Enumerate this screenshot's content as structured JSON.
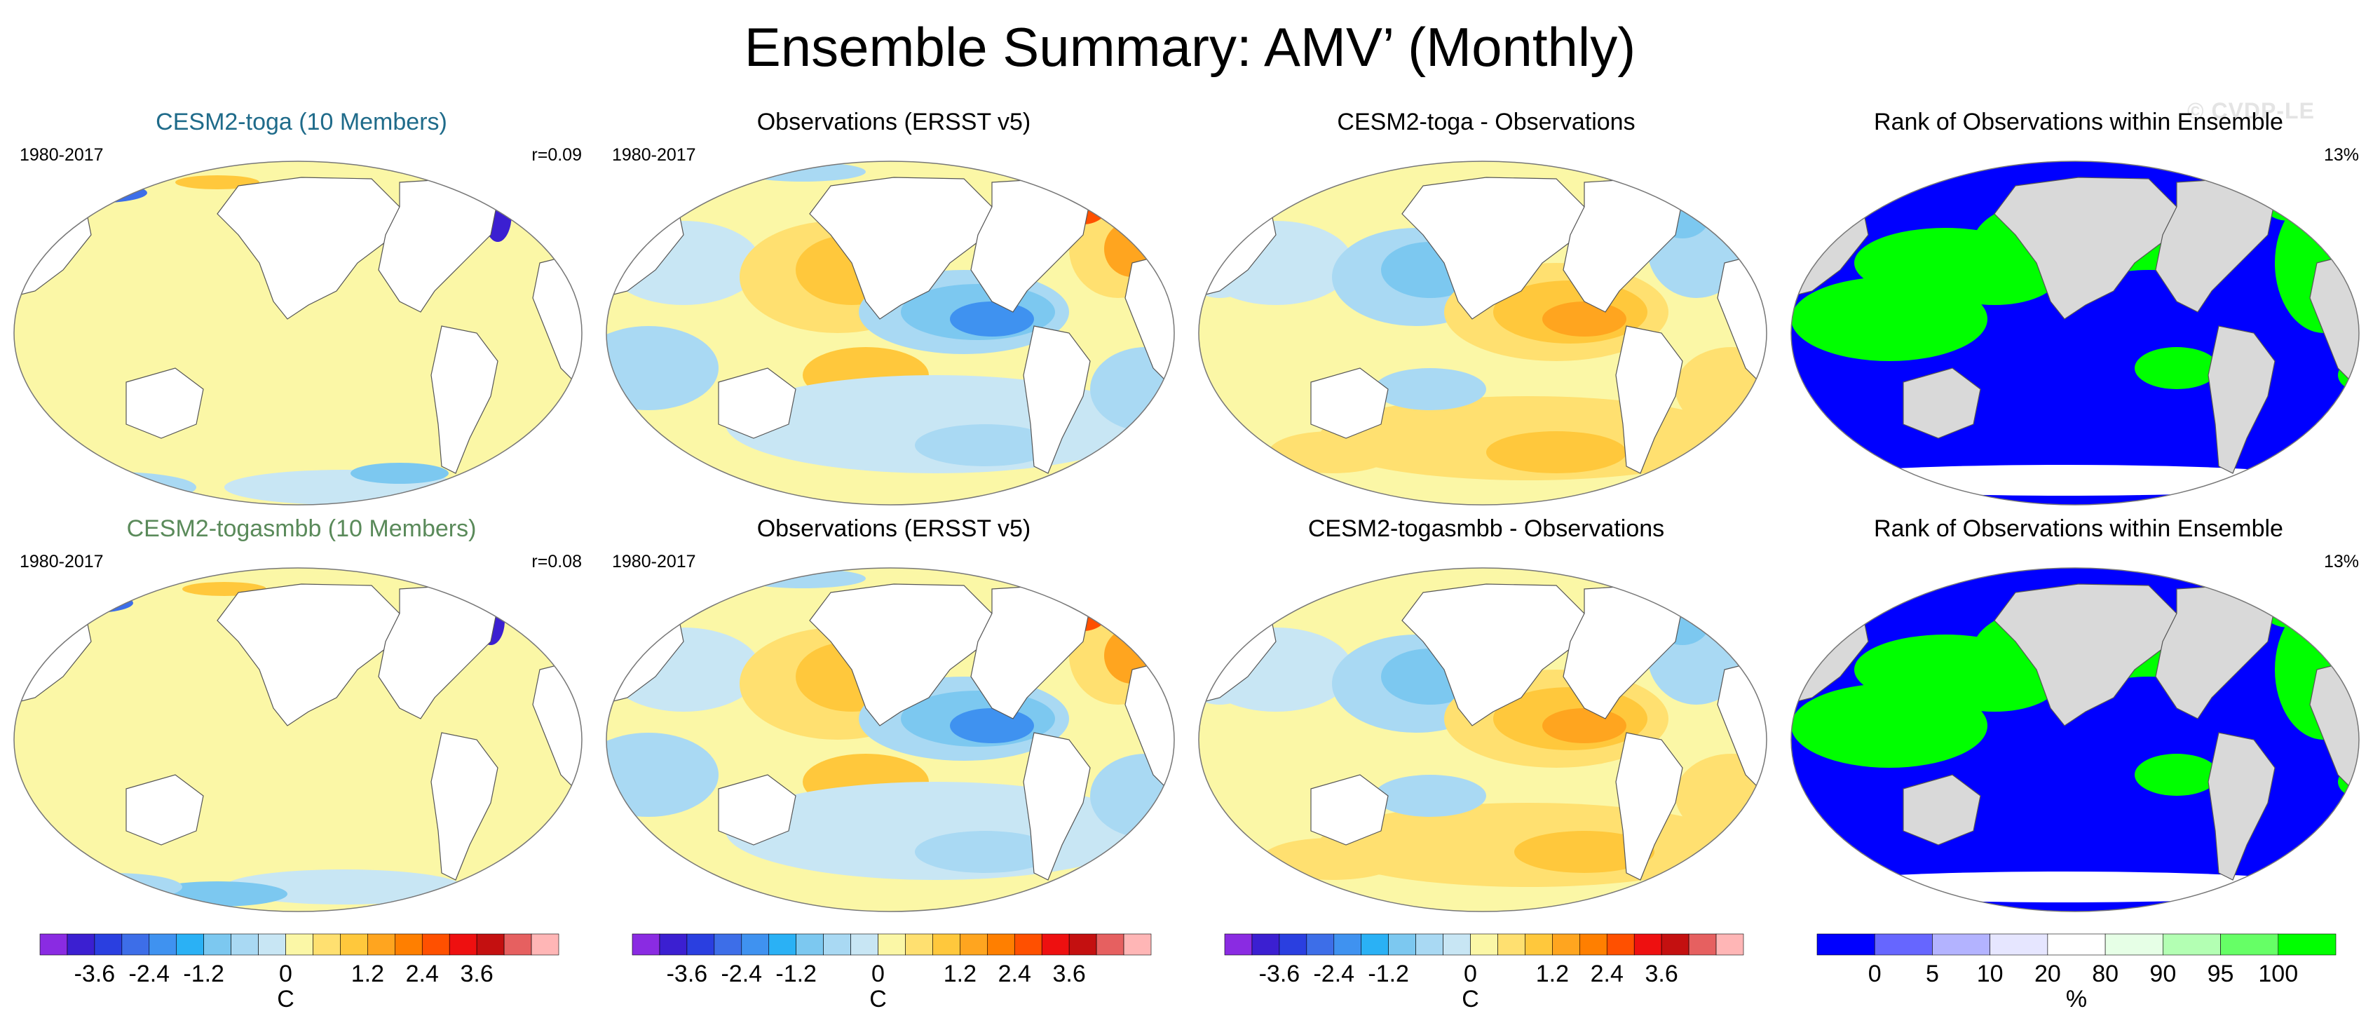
{
  "title": "Ensemble Summary: AMV’ (Monthly)",
  "watermark": "© CVDP-LE",
  "colors": {
    "title_toga": "#1f6b8a",
    "title_togasmbb": "#5a8a5a",
    "land": "#ffffff",
    "rank_land": "#d9d9d9"
  },
  "panels": [
    {
      "id": "r1c1",
      "title": "CESM2-toga (10 Members)",
      "period": "1980-2017",
      "corr": "r=0.09",
      "field": "model_toga"
    },
    {
      "id": "r1c2",
      "title": "Observations (ERSST v5)",
      "period": "1980-2017",
      "corr": "",
      "field": "obs"
    },
    {
      "id": "r1c3",
      "title": "CESM2-toga - Observations",
      "period": "",
      "corr": "",
      "field": "diff_toga"
    },
    {
      "id": "r1c4",
      "title": "Rank of Observations within Ensemble",
      "period": "",
      "corr": "13%",
      "field": "rank"
    },
    {
      "id": "r2c1",
      "title": "CESM2-togasmbb (10 Members)",
      "period": "1980-2017",
      "corr": "r=0.08",
      "field": "model_togasmbb"
    },
    {
      "id": "r2c2",
      "title": "Observations (ERSST v5)",
      "period": "1980-2017",
      "corr": "",
      "field": "obs"
    },
    {
      "id": "r2c3",
      "title": "CESM2-togasmbb - Observations",
      "period": "",
      "corr": "",
      "field": "diff_togasmbb"
    },
    {
      "id": "r2c4",
      "title": "Rank of Observations within Ensemble",
      "period": "",
      "corr": "13%",
      "field": "rank"
    }
  ],
  "chart_data": [
    {
      "type": "heatmap",
      "name": "sst_colorbar",
      "units": "C",
      "levels": [
        -4.2,
        -3.6,
        -3.0,
        -2.4,
        -1.8,
        -1.2,
        -0.6,
        -0.3,
        0,
        0.3,
        0.6,
        1.2,
        1.8,
        2.4,
        3.0,
        3.6,
        4.2
      ],
      "tick_labels": [
        "-3.6",
        "-2.4",
        "-1.2",
        "0",
        "1.2",
        "2.4",
        "3.6"
      ],
      "colors": [
        "#8a2be2",
        "#3b1fd1",
        "#2a3fe0",
        "#3d6ee8",
        "#3f92f0",
        "#2ab1f5",
        "#7cc8f0",
        "#a9d9f3",
        "#c8e6f4",
        "#fbf7a6",
        "#ffe070",
        "#ffc83c",
        "#ffa51f",
        "#ff7f00",
        "#ff5000",
        "#ee1010",
        "#c41010",
        "#e66060",
        "#ffb6b6"
      ]
    },
    {
      "type": "heatmap",
      "name": "rank_colorbar",
      "units": "%",
      "tick_labels": [
        "0",
        "5",
        "10",
        "20",
        "80",
        "90",
        "95",
        "100"
      ],
      "colors": [
        "#0000ff",
        "#6666ff",
        "#b3b3ff",
        "#e6e6ff",
        "#ffffff",
        "#e6ffe6",
        "#b3ffb3",
        "#66ff66",
        "#00ff00"
      ]
    }
  ]
}
